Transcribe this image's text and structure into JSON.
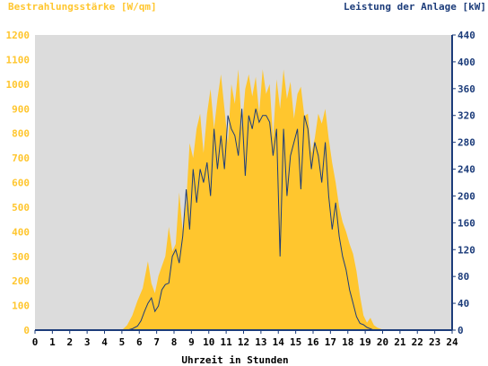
{
  "chart_data": {
    "type": "area",
    "ylabel_left": "Bestrahlungsstärke [W/qm]",
    "ylabel_right": "Leistung der Anlage [kW]",
    "xlabel": "Uhrzeit in Stunden",
    "xlim": [
      0,
      24
    ],
    "ylim_left": [
      0,
      1200
    ],
    "ylim_right": [
      0,
      440
    ],
    "x_ticks": [
      "0",
      "1",
      "2",
      "3",
      "4",
      "5",
      "6",
      "7",
      "8",
      "9",
      "10",
      "11",
      "12",
      "13",
      "14",
      "15",
      "16",
      "17",
      "18",
      "19",
      "20",
      "21",
      "22",
      "23",
      "24"
    ],
    "y_ticks_left": [
      "0",
      "100",
      "200",
      "300",
      "400",
      "500",
      "600",
      "700",
      "800",
      "900",
      "1000",
      "1100",
      "1200"
    ],
    "y_ticks_right": [
      "0",
      "40",
      "80",
      "120",
      "160",
      "200",
      "240",
      "280",
      "320",
      "360",
      "400",
      "440"
    ],
    "grid": false,
    "colors": {
      "irradiance": "#FFC62E",
      "power": "#1C3C7A",
      "plot_bg": "#DCDCDC",
      "axis": "#1C3C7A"
    },
    "series": [
      {
        "name": "Bestrahlungsstärke [W/qm]",
        "axis": "left",
        "style": "filled-area",
        "x": [
          0,
          5.0,
          5.3,
          5.6,
          5.9,
          6.2,
          6.5,
          6.7,
          6.9,
          7.1,
          7.3,
          7.5,
          7.7,
          7.9,
          8.1,
          8.3,
          8.5,
          8.7,
          8.9,
          9.1,
          9.3,
          9.5,
          9.7,
          9.9,
          10.1,
          10.3,
          10.5,
          10.7,
          10.9,
          11.1,
          11.3,
          11.5,
          11.7,
          11.9,
          12.1,
          12.3,
          12.5,
          12.7,
          12.9,
          13.1,
          13.3,
          13.5,
          13.7,
          13.9,
          14.1,
          14.3,
          14.5,
          14.7,
          14.9,
          15.1,
          15.3,
          15.5,
          15.7,
          15.9,
          16.1,
          16.3,
          16.5,
          16.7,
          16.9,
          17.1,
          17.3,
          17.5,
          17.7,
          17.9,
          18.1,
          18.3,
          18.5,
          18.7,
          18.9,
          19.1,
          19.3,
          19.5,
          19.7,
          19.9,
          20.1,
          20.3,
          24
        ],
        "y": [
          0,
          0,
          20,
          60,
          120,
          170,
          280,
          190,
          150,
          220,
          260,
          300,
          420,
          320,
          350,
          560,
          400,
          520,
          760,
          700,
          820,
          880,
          720,
          880,
          980,
          820,
          940,
          1040,
          900,
          760,
          1000,
          920,
          1060,
          820,
          980,
          1040,
          950,
          1030,
          880,
          1060,
          960,
          1000,
          780,
          1020,
          900,
          1060,
          940,
          1010,
          860,
          960,
          990,
          870,
          880,
          720,
          780,
          880,
          840,
          900,
          780,
          680,
          600,
          500,
          440,
          400,
          350,
          310,
          240,
          140,
          60,
          30,
          50,
          20,
          10,
          5,
          0,
          0,
          0
        ],
        "note": "values estimated from the filled area's upper envelope"
      },
      {
        "name": "Leistung der Anlage [kW]",
        "axis": "right",
        "style": "line",
        "x": [
          0,
          5.3,
          5.6,
          5.9,
          6.1,
          6.3,
          6.5,
          6.7,
          6.9,
          7.1,
          7.3,
          7.5,
          7.7,
          7.9,
          8.1,
          8.3,
          8.5,
          8.7,
          8.9,
          9.1,
          9.3,
          9.5,
          9.7,
          9.9,
          10.1,
          10.3,
          10.5,
          10.7,
          10.9,
          11.1,
          11.3,
          11.5,
          11.7,
          11.9,
          12.1,
          12.3,
          12.5,
          12.7,
          12.9,
          13.1,
          13.3,
          13.5,
          13.7,
          13.9,
          14.1,
          14.3,
          14.5,
          14.7,
          14.9,
          15.1,
          15.3,
          15.5,
          15.7,
          15.9,
          16.1,
          16.3,
          16.5,
          16.7,
          16.9,
          17.1,
          17.3,
          17.5,
          17.7,
          17.9,
          18.1,
          18.3,
          18.5,
          18.7,
          18.9,
          19.1,
          19.3,
          19.5,
          19.7,
          19.9,
          20.1,
          24
        ],
        "y": [
          0,
          0,
          2,
          6,
          14,
          28,
          40,
          48,
          28,
          36,
          60,
          68,
          70,
          110,
          120,
          100,
          140,
          210,
          150,
          240,
          190,
          240,
          220,
          250,
          200,
          300,
          240,
          290,
          240,
          320,
          300,
          290,
          260,
          330,
          230,
          320,
          300,
          330,
          310,
          320,
          320,
          310,
          260,
          300,
          110,
          300,
          200,
          260,
          280,
          300,
          210,
          320,
          300,
          240,
          280,
          260,
          220,
          280,
          200,
          150,
          190,
          140,
          110,
          90,
          60,
          40,
          20,
          10,
          8,
          4,
          2,
          0,
          0,
          0,
          0,
          0
        ],
        "note": "values estimated from the dark line"
      }
    ]
  }
}
